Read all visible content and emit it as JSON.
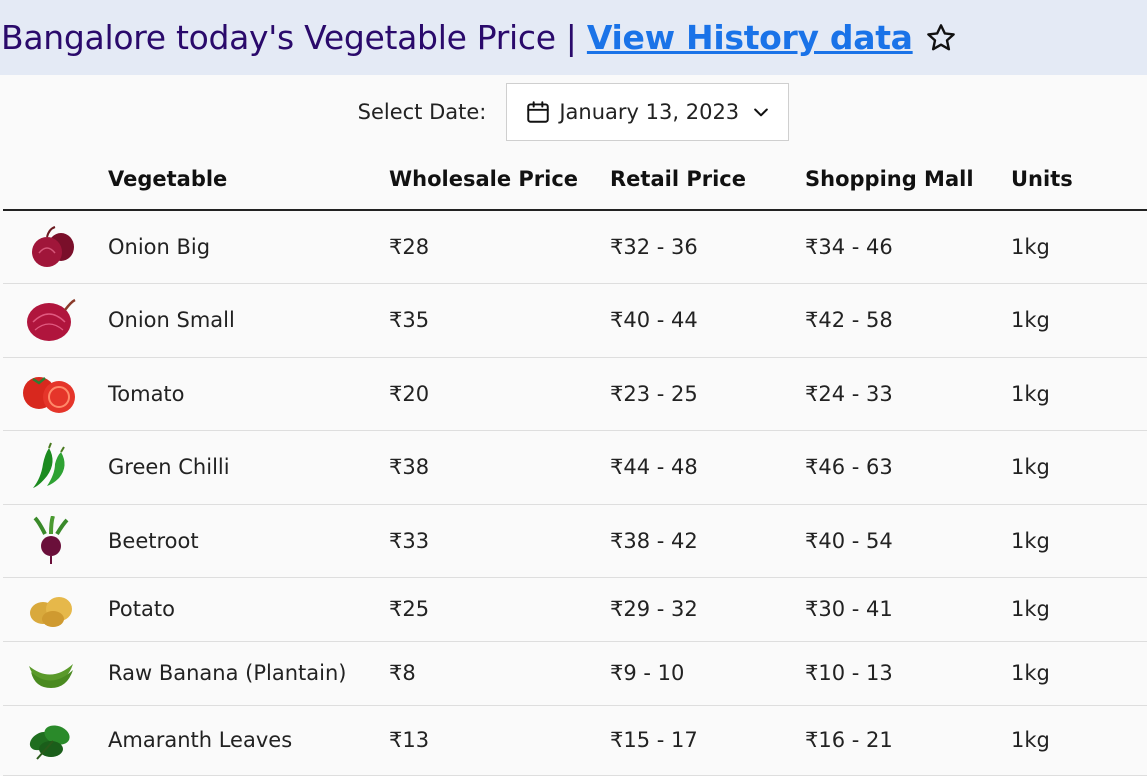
{
  "header": {
    "title": "Bangalore today's Vegetable Price",
    "separator": "|",
    "history_link": "View History data"
  },
  "date_select": {
    "label": "Select Date:",
    "value": "January 13, 2023"
  },
  "table": {
    "columns": [
      "Vegetable",
      "Wholesale Price",
      "Retail Price",
      "Shopping Mall",
      "Units"
    ],
    "rows": [
      {
        "name": "Onion Big",
        "wholesale": "₹28",
        "retail": "₹32 - 36",
        "mall": "₹34 - 46",
        "unit": "1kg",
        "icon": "onion-big-icon"
      },
      {
        "name": "Onion Small",
        "wholesale": "₹35",
        "retail": "₹40 - 44",
        "mall": "₹42 - 58",
        "unit": "1kg",
        "icon": "onion-small-icon"
      },
      {
        "name": "Tomato",
        "wholesale": "₹20",
        "retail": "₹23 - 25",
        "mall": "₹24 - 33",
        "unit": "1kg",
        "icon": "tomato-icon"
      },
      {
        "name": "Green Chilli",
        "wholesale": "₹38",
        "retail": "₹44 - 48",
        "mall": "₹46 - 63",
        "unit": "1kg",
        "icon": "green-chilli-icon"
      },
      {
        "name": "Beetroot",
        "wholesale": "₹33",
        "retail": "₹38 - 42",
        "mall": "₹40 - 54",
        "unit": "1kg",
        "icon": "beetroot-icon"
      },
      {
        "name": "Potato",
        "wholesale": "₹25",
        "retail": "₹29 - 32",
        "mall": "₹30 - 41",
        "unit": "1kg",
        "icon": "potato-icon"
      },
      {
        "name": "Raw Banana (Plantain)",
        "wholesale": "₹8",
        "retail": "₹9 - 10",
        "mall": "₹10 - 13",
        "unit": "1kg",
        "icon": "raw-banana-icon"
      },
      {
        "name": "Amaranth Leaves",
        "wholesale": "₹13",
        "retail": "₹15 - 17",
        "mall": "₹16 - 21",
        "unit": "1kg",
        "icon": "amaranth-leaves-icon"
      }
    ]
  },
  "colors": {
    "header_bg": "#e4eaf5",
    "title": "#2a0a6b",
    "link": "#1a73e8"
  }
}
